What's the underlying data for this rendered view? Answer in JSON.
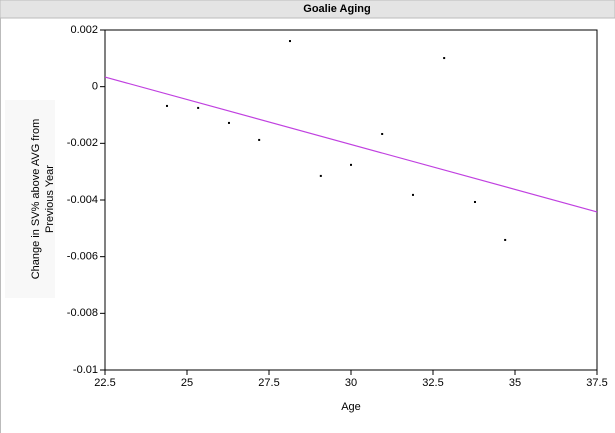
{
  "chart_data": {
    "type": "scatter",
    "title": "Goalie Aging",
    "xlabel": "Age",
    "ylabel": [
      "Change in SV% above AVG from",
      "Previous Year"
    ],
    "x": [
      24.39,
      25.34,
      26.28,
      27.2,
      28.14,
      29.08,
      30.0,
      30.95,
      31.89,
      32.84,
      33.78,
      34.7
    ],
    "values": [
      -0.00068,
      -0.00075,
      -0.00128,
      -0.00188,
      0.00161,
      -0.00315,
      -0.00276,
      -0.00167,
      -0.00382,
      0.00101,
      -0.00407,
      -0.00541
    ],
    "color": "#000000",
    "trend_line": {
      "x": [
        22.5,
        37.5
      ],
      "values": [
        0.00034,
        -0.00442
      ],
      "color": "#c040e0"
    },
    "xlim": [
      22.5,
      37.5
    ],
    "xticks": [
      22.5,
      25,
      27.5,
      30,
      32.5,
      35,
      37.5
    ],
    "ylim": [
      -0.01,
      0.002
    ],
    "yticks": [
      0.002,
      0,
      -0.002,
      -0.004,
      -0.006,
      -0.008,
      -0.01
    ]
  }
}
